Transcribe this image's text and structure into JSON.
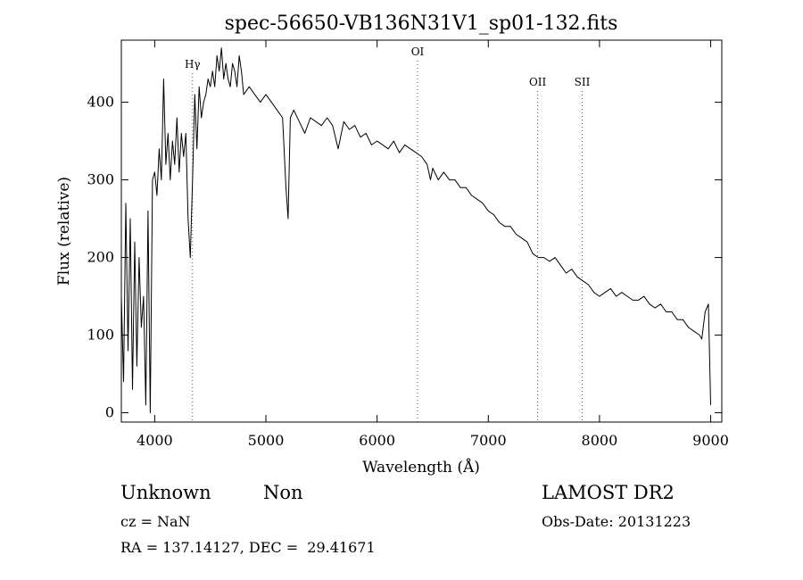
{
  "chart_data": {
    "type": "line",
    "title": "spec-56650-VB136N31V1_sp01-132.fits",
    "xlabel": "Wavelength (Å)",
    "ylabel": "Flux (relative)",
    "xlim": [
      3700,
      9100
    ],
    "ylim": [
      -12,
      480
    ],
    "x_ticks": [
      4000,
      5000,
      6000,
      7000,
      8000,
      9000
    ],
    "y_ticks": [
      0,
      100,
      200,
      300,
      400
    ],
    "grid": false,
    "line_color": "#000000",
    "series": [
      {
        "points": [
          [
            3700,
            150
          ],
          [
            3720,
            40
          ],
          [
            3740,
            270
          ],
          [
            3760,
            80
          ],
          [
            3780,
            250
          ],
          [
            3800,
            30
          ],
          [
            3820,
            220
          ],
          [
            3840,
            60
          ],
          [
            3860,
            200
          ],
          [
            3880,
            110
          ],
          [
            3900,
            150
          ],
          [
            3920,
            10
          ],
          [
            3940,
            260
          ],
          [
            3960,
            0
          ],
          [
            3980,
            300
          ],
          [
            4000,
            310
          ],
          [
            4020,
            280
          ],
          [
            4040,
            340
          ],
          [
            4060,
            300
          ],
          [
            4080,
            430
          ],
          [
            4100,
            320
          ],
          [
            4120,
            360
          ],
          [
            4140,
            300
          ],
          [
            4160,
            350
          ],
          [
            4180,
            320
          ],
          [
            4200,
            380
          ],
          [
            4220,
            310
          ],
          [
            4240,
            360
          ],
          [
            4260,
            330
          ],
          [
            4280,
            360
          ],
          [
            4300,
            250
          ],
          [
            4320,
            200
          ],
          [
            4340,
            300
          ],
          [
            4360,
            410
          ],
          [
            4380,
            340
          ],
          [
            4400,
            420
          ],
          [
            4420,
            380
          ],
          [
            4440,
            400
          ],
          [
            4460,
            410
          ],
          [
            4480,
            430
          ],
          [
            4500,
            420
          ],
          [
            4520,
            440
          ],
          [
            4540,
            420
          ],
          [
            4560,
            460
          ],
          [
            4580,
            440
          ],
          [
            4600,
            470
          ],
          [
            4620,
            430
          ],
          [
            4640,
            450
          ],
          [
            4660,
            430
          ],
          [
            4680,
            420
          ],
          [
            4700,
            450
          ],
          [
            4720,
            440
          ],
          [
            4740,
            420
          ],
          [
            4760,
            460
          ],
          [
            4780,
            440
          ],
          [
            4800,
            410
          ],
          [
            4850,
            420
          ],
          [
            4900,
            410
          ],
          [
            4950,
            400
          ],
          [
            5000,
            410
          ],
          [
            5050,
            400
          ],
          [
            5100,
            390
          ],
          [
            5150,
            380
          ],
          [
            5180,
            290
          ],
          [
            5200,
            250
          ],
          [
            5220,
            380
          ],
          [
            5250,
            390
          ],
          [
            5300,
            375
          ],
          [
            5350,
            360
          ],
          [
            5400,
            380
          ],
          [
            5450,
            375
          ],
          [
            5500,
            370
          ],
          [
            5550,
            380
          ],
          [
            5600,
            370
          ],
          [
            5650,
            340
          ],
          [
            5700,
            375
          ],
          [
            5750,
            365
          ],
          [
            5800,
            370
          ],
          [
            5850,
            355
          ],
          [
            5900,
            360
          ],
          [
            5950,
            345
          ],
          [
            6000,
            350
          ],
          [
            6050,
            345
          ],
          [
            6100,
            340
          ],
          [
            6150,
            350
          ],
          [
            6200,
            335
          ],
          [
            6250,
            345
          ],
          [
            6300,
            340
          ],
          [
            6350,
            335
          ],
          [
            6400,
            330
          ],
          [
            6450,
            320
          ],
          [
            6480,
            300
          ],
          [
            6500,
            315
          ],
          [
            6550,
            300
          ],
          [
            6600,
            310
          ],
          [
            6650,
            300
          ],
          [
            6700,
            300
          ],
          [
            6750,
            290
          ],
          [
            6800,
            290
          ],
          [
            6850,
            280
          ],
          [
            6900,
            275
          ],
          [
            6950,
            270
          ],
          [
            7000,
            260
          ],
          [
            7050,
            255
          ],
          [
            7100,
            245
          ],
          [
            7150,
            240
          ],
          [
            7200,
            240
          ],
          [
            7250,
            230
          ],
          [
            7300,
            225
          ],
          [
            7350,
            220
          ],
          [
            7400,
            205
          ],
          [
            7450,
            200
          ],
          [
            7500,
            200
          ],
          [
            7550,
            195
          ],
          [
            7600,
            200
          ],
          [
            7650,
            190
          ],
          [
            7700,
            180
          ],
          [
            7750,
            185
          ],
          [
            7800,
            175
          ],
          [
            7850,
            170
          ],
          [
            7900,
            165
          ],
          [
            7950,
            155
          ],
          [
            8000,
            150
          ],
          [
            8050,
            155
          ],
          [
            8100,
            160
          ],
          [
            8150,
            150
          ],
          [
            8200,
            155
          ],
          [
            8250,
            150
          ],
          [
            8300,
            145
          ],
          [
            8350,
            145
          ],
          [
            8400,
            150
          ],
          [
            8450,
            140
          ],
          [
            8500,
            135
          ],
          [
            8550,
            140
          ],
          [
            8600,
            130
          ],
          [
            8650,
            130
          ],
          [
            8700,
            120
          ],
          [
            8750,
            120
          ],
          [
            8800,
            110
          ],
          [
            8850,
            105
          ],
          [
            8900,
            100
          ],
          [
            8920,
            95
          ],
          [
            8950,
            130
          ],
          [
            8980,
            140
          ],
          [
            9000,
            10
          ]
        ]
      }
    ],
    "annotations": [
      {
        "label": "Hγ",
        "x": 4340,
        "line": true
      },
      {
        "label": "OI",
        "x": 6364,
        "line": true
      },
      {
        "label": "OII",
        "x": 7444,
        "line": true
      },
      {
        "label": "SII",
        "x": 7844,
        "line": true
      }
    ]
  },
  "footer": {
    "class_label": "Unknown",
    "subclass_label": "Non",
    "survey": "LAMOST DR2",
    "cz": "cz = NaN",
    "obs_date": "Obs-Date: 20131223",
    "coords": "RA = 137.14127, DEC =  29.41671"
  }
}
